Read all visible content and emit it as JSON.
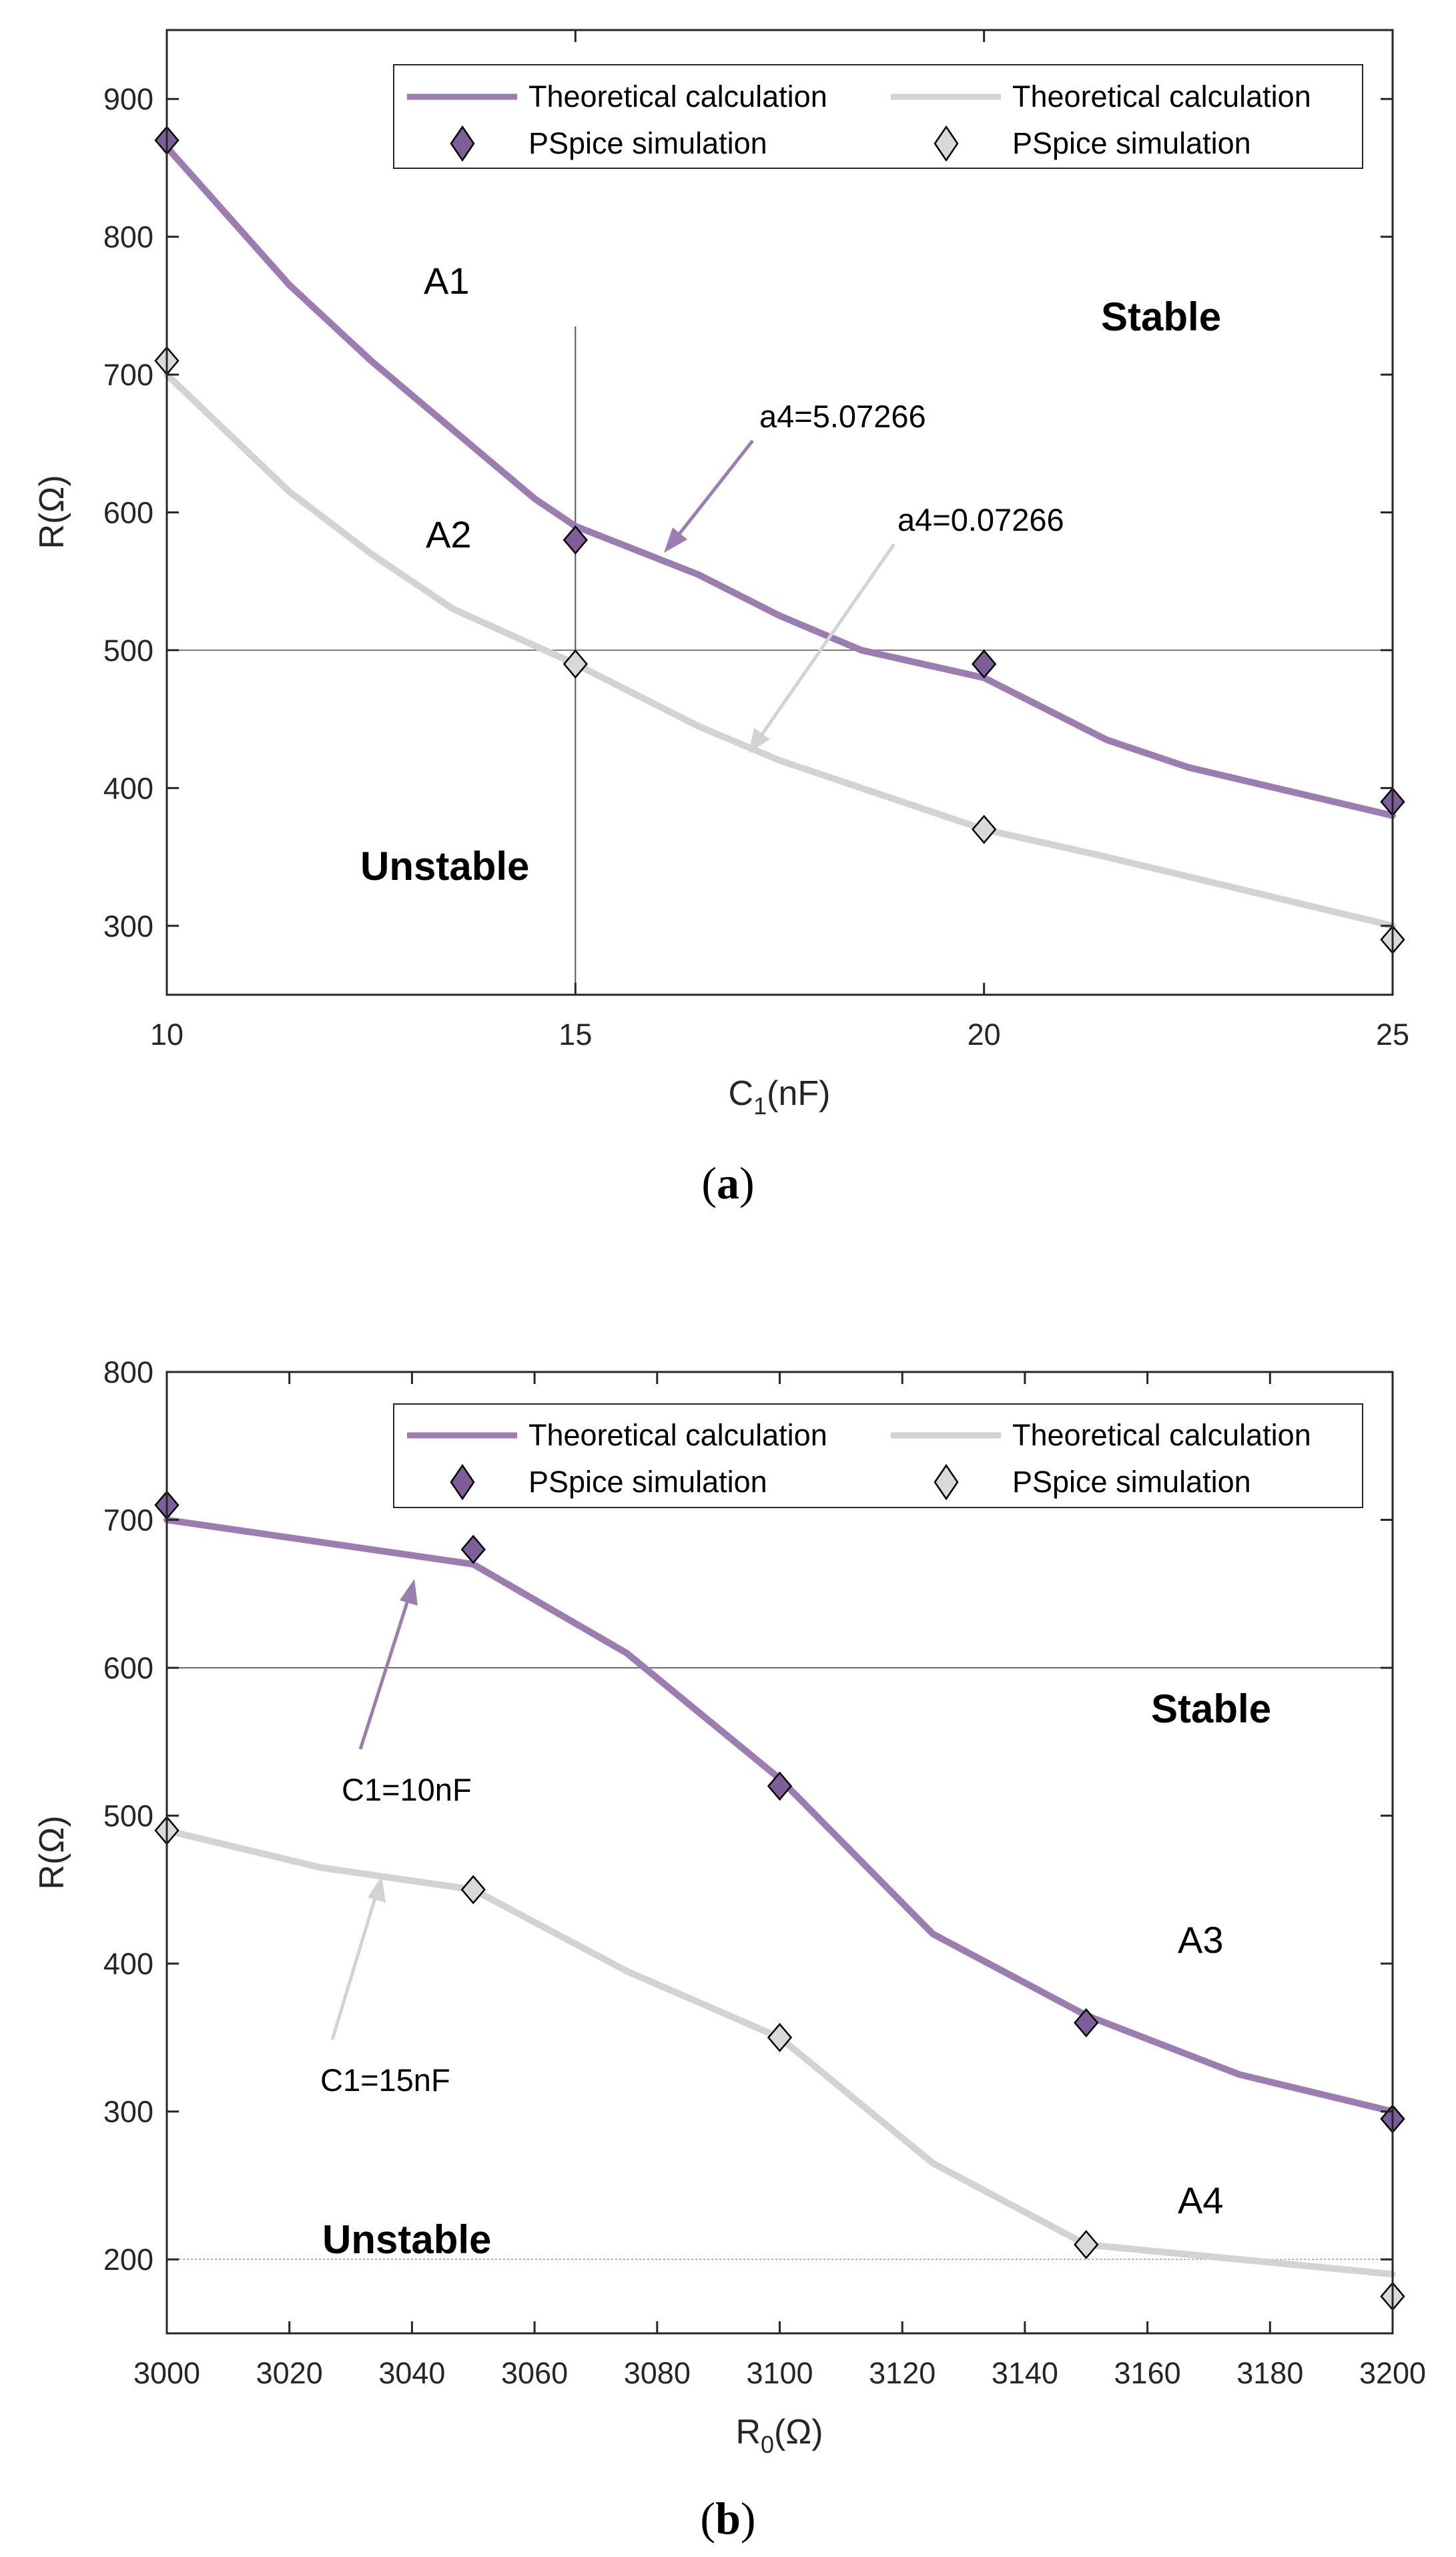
{
  "colors": {
    "purple": "#9B7DB2",
    "gray": "#D3D3D3",
    "purple_marker": "#7E5E98",
    "gray_marker": "#D9D9D9"
  },
  "chart_data": [
    {
      "type": "line",
      "caption": "a",
      "xlabel": "C",
      "xlabel_sub": "1",
      "xlabel_suffix": "(nF)",
      "ylabel": "R(Ω)",
      "xlim": [
        10,
        25
      ],
      "ylim": [
        250,
        950
      ],
      "xticks": [
        10,
        15,
        20,
        25
      ],
      "yticks": [
        300,
        400,
        500,
        600,
        700,
        800,
        900
      ],
      "series": [
        {
          "name": "Theoretical calculation",
          "kind": "line",
          "color": "purple",
          "x": [
            10,
            11.5,
            12.5,
            13.5,
            14.5,
            15,
            16.5,
            17.5,
            18.5,
            20,
            21.5,
            22.5,
            25
          ],
          "y": [
            865,
            765,
            710,
            660,
            610,
            590,
            555,
            525,
            500,
            480,
            435,
            415,
            380
          ]
        },
        {
          "name": "Theoretical calculation",
          "kind": "line",
          "color": "gray",
          "x": [
            10,
            11.5,
            12.5,
            13.5,
            15,
            16.5,
            17.5,
            20,
            21.5,
            25
          ],
          "y": [
            700,
            615,
            570,
            530,
            490,
            445,
            420,
            370,
            350,
            300
          ]
        },
        {
          "name": "PSpice simulation",
          "kind": "marker",
          "color": "purple",
          "x": [
            10,
            15,
            20,
            25
          ],
          "y": [
            870,
            580,
            490,
            390
          ]
        },
        {
          "name": "PSpice simulation",
          "kind": "marker",
          "color": "gray",
          "x": [
            10,
            15,
            20,
            25
          ],
          "y": [
            710,
            490,
            370,
            290
          ]
        }
      ],
      "annotations": {
        "purple_label": "a4=5.07266",
        "gray_label": "a4=0.07266",
        "region_a1": "A1",
        "region_a2": "A2",
        "stable": "Stable",
        "unstable": "Unstable"
      },
      "reference_lines": {
        "vertical_x": 15,
        "horizontal_y": 500
      }
    },
    {
      "type": "line",
      "caption": "b",
      "xlabel": "R",
      "xlabel_sub": "0",
      "xlabel_suffix": "(Ω)",
      "ylabel": "R(Ω)",
      "xlim": [
        3000,
        3200
      ],
      "ylim": [
        150,
        800
      ],
      "xticks": [
        3000,
        3020,
        3040,
        3060,
        3080,
        3100,
        3120,
        3140,
        3160,
        3180,
        3200
      ],
      "yticks": [
        200,
        300,
        400,
        500,
        600,
        700,
        800
      ],
      "series": [
        {
          "name": "Theoretical calculation",
          "kind": "line",
          "color": "purple",
          "x": [
            3000,
            3025,
            3050,
            3075,
            3100,
            3125,
            3150,
            3175,
            3200
          ],
          "y": [
            700,
            685,
            670,
            610,
            525,
            420,
            365,
            325,
            300
          ]
        },
        {
          "name": "Theoretical calculation",
          "kind": "line",
          "color": "gray",
          "x": [
            3000,
            3025,
            3050,
            3075,
            3100,
            3125,
            3150,
            3175,
            3200
          ],
          "y": [
            490,
            465,
            450,
            395,
            350,
            265,
            210,
            200,
            190
          ]
        },
        {
          "name": "PSpice simulation",
          "kind": "marker",
          "color": "purple",
          "x": [
            3000,
            3050,
            3100,
            3150,
            3200
          ],
          "y": [
            710,
            680,
            520,
            360,
            295
          ]
        },
        {
          "name": "PSpice simulation",
          "kind": "marker",
          "color": "gray",
          "x": [
            3000,
            3050,
            3100,
            3150,
            3200
          ],
          "y": [
            490,
            450,
            350,
            210,
            175
          ]
        }
      ],
      "annotations": {
        "purple_label": "C1=10nF",
        "gray_label": "C1=15nF",
        "region_a3": "A3",
        "region_a4": "A4",
        "stable": "Stable",
        "unstable": "Unstable"
      },
      "reference_lines": {
        "horizontal_y": [
          600,
          200
        ]
      }
    }
  ]
}
